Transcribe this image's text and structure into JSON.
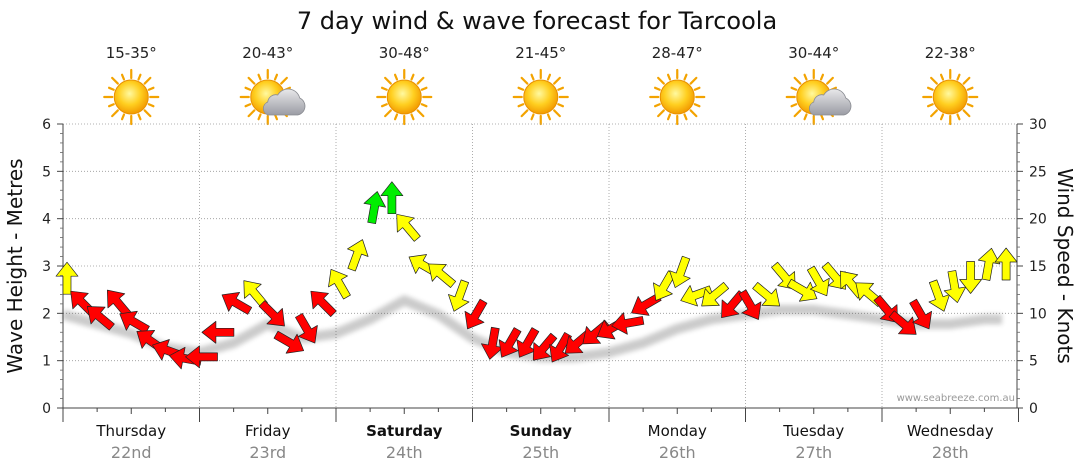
{
  "colors": {
    "calm": "#ff0000",
    "moderate": "#ffff00",
    "fresh": "#00ee00",
    "grid": "#999999",
    "temp_text": "#222222",
    "date_text": "#888888"
  },
  "chart_data": {
    "type": "line",
    "title": "7 day wind & wave forecast for Tarcoola",
    "ylabel_left": "Wave Height - Metres",
    "ylabel_right": "Wind Speed - Knots",
    "ylim_left": [
      0,
      6
    ],
    "ylim_right": [
      0,
      30
    ],
    "yticks_left": [
      "0",
      "1",
      "2",
      "3",
      "4",
      "5",
      "6"
    ],
    "yticks_right": [
      "0",
      "5",
      "10",
      "15",
      "20",
      "25",
      "30"
    ],
    "watermark": "www.seabreeze.com.au",
    "days": [
      {
        "name": "Thursday",
        "date": "22nd",
        "temp": "15-35°",
        "icon": "sun-icon",
        "bold": false
      },
      {
        "name": "Friday",
        "date": "23rd",
        "temp": "20-43°",
        "icon": "sun-cloud-icon",
        "bold": false
      },
      {
        "name": "Saturday",
        "date": "24th",
        "temp": "30-48°",
        "icon": "sun-icon",
        "bold": true
      },
      {
        "name": "Sunday",
        "date": "25th",
        "temp": "21-45°",
        "icon": "sun-icon",
        "bold": true
      },
      {
        "name": "Monday",
        "date": "26th",
        "temp": "28-47°",
        "icon": "sun-icon",
        "bold": false
      },
      {
        "name": "Tuesday",
        "date": "27th",
        "temp": "30-44°",
        "icon": "sun-cloud-icon",
        "bold": false
      },
      {
        "name": "Wednesday",
        "date": "28th",
        "temp": "22-38°",
        "icon": "sun-icon",
        "bold": false
      }
    ],
    "wind_series": {
      "name": "Wind Speed (knots)",
      "x_days": [
        0.0,
        0.12,
        0.25,
        0.38,
        0.5,
        0.62,
        0.75,
        0.88,
        1.0,
        1.12,
        1.25,
        1.38,
        1.5,
        1.62,
        1.75,
        1.88,
        2.0,
        2.12,
        2.25,
        2.38,
        2.5,
        2.62,
        2.75,
        2.88,
        3.0,
        3.12,
        3.25,
        3.38,
        3.5,
        3.62,
        3.75,
        3.88,
        4.0,
        4.12,
        4.25,
        4.38,
        4.5,
        4.62,
        4.75,
        4.88,
        5.0,
        5.12,
        5.25,
        5.38,
        5.5,
        5.62,
        5.75,
        5.88,
        6.0,
        6.12,
        6.25,
        6.38,
        6.5,
        6.62,
        6.75,
        6.88
      ],
      "knots": [
        13.5,
        11,
        9.5,
        11,
        9,
        7,
        6,
        5.2,
        5.4,
        8,
        11,
        12,
        10,
        7,
        8.5,
        11,
        13,
        16,
        21,
        22,
        19,
        15,
        14,
        12,
        10,
        7,
        7,
        7,
        6.5,
        6.5,
        7,
        8,
        8.5,
        9,
        11,
        13,
        14.5,
        12,
        12,
        11,
        11,
        12,
        14,
        12.5,
        13.5,
        14,
        13,
        12,
        10.5,
        9,
        10,
        12,
        13,
        14,
        15,
        15
      ],
      "dir_deg": [
        0,
        315,
        310,
        320,
        300,
        305,
        290,
        280,
        270,
        270,
        300,
        320,
        135,
        120,
        150,
        315,
        330,
        20,
        10,
        0,
        320,
        300,
        310,
        200,
        210,
        190,
        210,
        210,
        220,
        210,
        230,
        230,
        240,
        260,
        240,
        210,
        200,
        250,
        230,
        220,
        150,
        130,
        140,
        120,
        150,
        140,
        320,
        310,
        140,
        130,
        150,
        160,
        170,
        180,
        10,
        0
      ]
    },
    "wave_series": {
      "name": "Wave Height (m)",
      "x_days": [
        0.0,
        0.25,
        0.5,
        0.75,
        1.0,
        1.25,
        1.5,
        1.75,
        2.0,
        2.25,
        2.5,
        2.75,
        3.0,
        3.25,
        3.5,
        3.75,
        4.0,
        4.25,
        4.5,
        4.75,
        5.0,
        5.25,
        5.5,
        5.75,
        6.0,
        6.25,
        6.5,
        6.75,
        6.88
      ],
      "metres": [
        2.1,
        1.9,
        1.7,
        1.4,
        1.3,
        1.5,
        1.9,
        1.6,
        1.7,
        2.0,
        2.4,
        2.1,
        1.6,
        1.3,
        1.2,
        1.2,
        1.3,
        1.5,
        1.8,
        2.0,
        2.1,
        2.2,
        2.2,
        2.1,
        2.0,
        1.9,
        1.9,
        2.0,
        2.0
      ]
    }
  }
}
